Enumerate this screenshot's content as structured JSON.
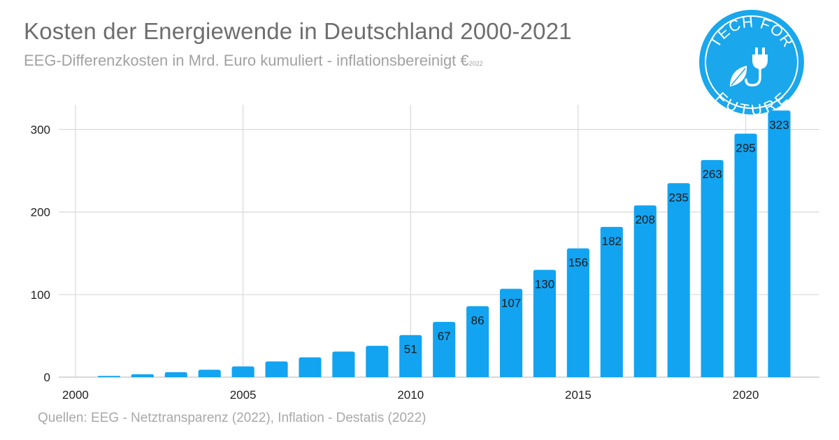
{
  "header": {
    "title": "Kosten der Energiewende in Deutschland 2000-2021",
    "subtitle": "EEG-Differenzkosten in Mrd. Euro kumuliert - inflationsbereinigt €",
    "subtitle_suffix": "2022"
  },
  "footer": {
    "source": "Quellen: EEG - Netztransparenz (2022), Inflation - Destatis (2022)"
  },
  "logo": {
    "text_top": "TECH FOR",
    "text_bottom": "FUTURE",
    "icon": "plug-leaf-icon"
  },
  "colors": {
    "bar": "#12a4f1",
    "grid": "#d9d9d9",
    "title": "#6d6d6d",
    "subtitle": "#a2a2a2",
    "logo": "#1aa7ec"
  },
  "chart_data": {
    "type": "bar",
    "title": "Kosten der Energiewende in Deutschland 2000-2021",
    "subtitle": "EEG-Differenzkosten in Mrd. Euro kumuliert - inflationsbereinigt €2022",
    "xlabel": "",
    "ylabel": "",
    "x": [
      2000,
      2001,
      2002,
      2003,
      2004,
      2005,
      2006,
      2007,
      2008,
      2009,
      2010,
      2011,
      2012,
      2013,
      2014,
      2015,
      2016,
      2017,
      2018,
      2019,
      2020,
      2021
    ],
    "values": [
      0,
      1.5,
      3.5,
      6,
      9,
      13,
      19,
      24,
      31,
      38,
      51,
      67,
      86,
      107,
      130,
      156,
      182,
      208,
      235,
      263,
      295,
      323
    ],
    "data_labels": {
      "2010": "51",
      "2011": "67",
      "2012": "86",
      "2013": "107",
      "2014": "130",
      "2015": "156",
      "2016": "182",
      "2017": "208",
      "2018": "235",
      "2019": "263",
      "2020": "295",
      "2021": "323"
    },
    "xticks": [
      2000,
      2005,
      2010,
      2015,
      2020
    ],
    "yticks": [
      0,
      100,
      200,
      300
    ],
    "xlim": [
      1999.5,
      2022.2
    ],
    "ylim": [
      0,
      330
    ],
    "grid": true,
    "legend": "none"
  }
}
